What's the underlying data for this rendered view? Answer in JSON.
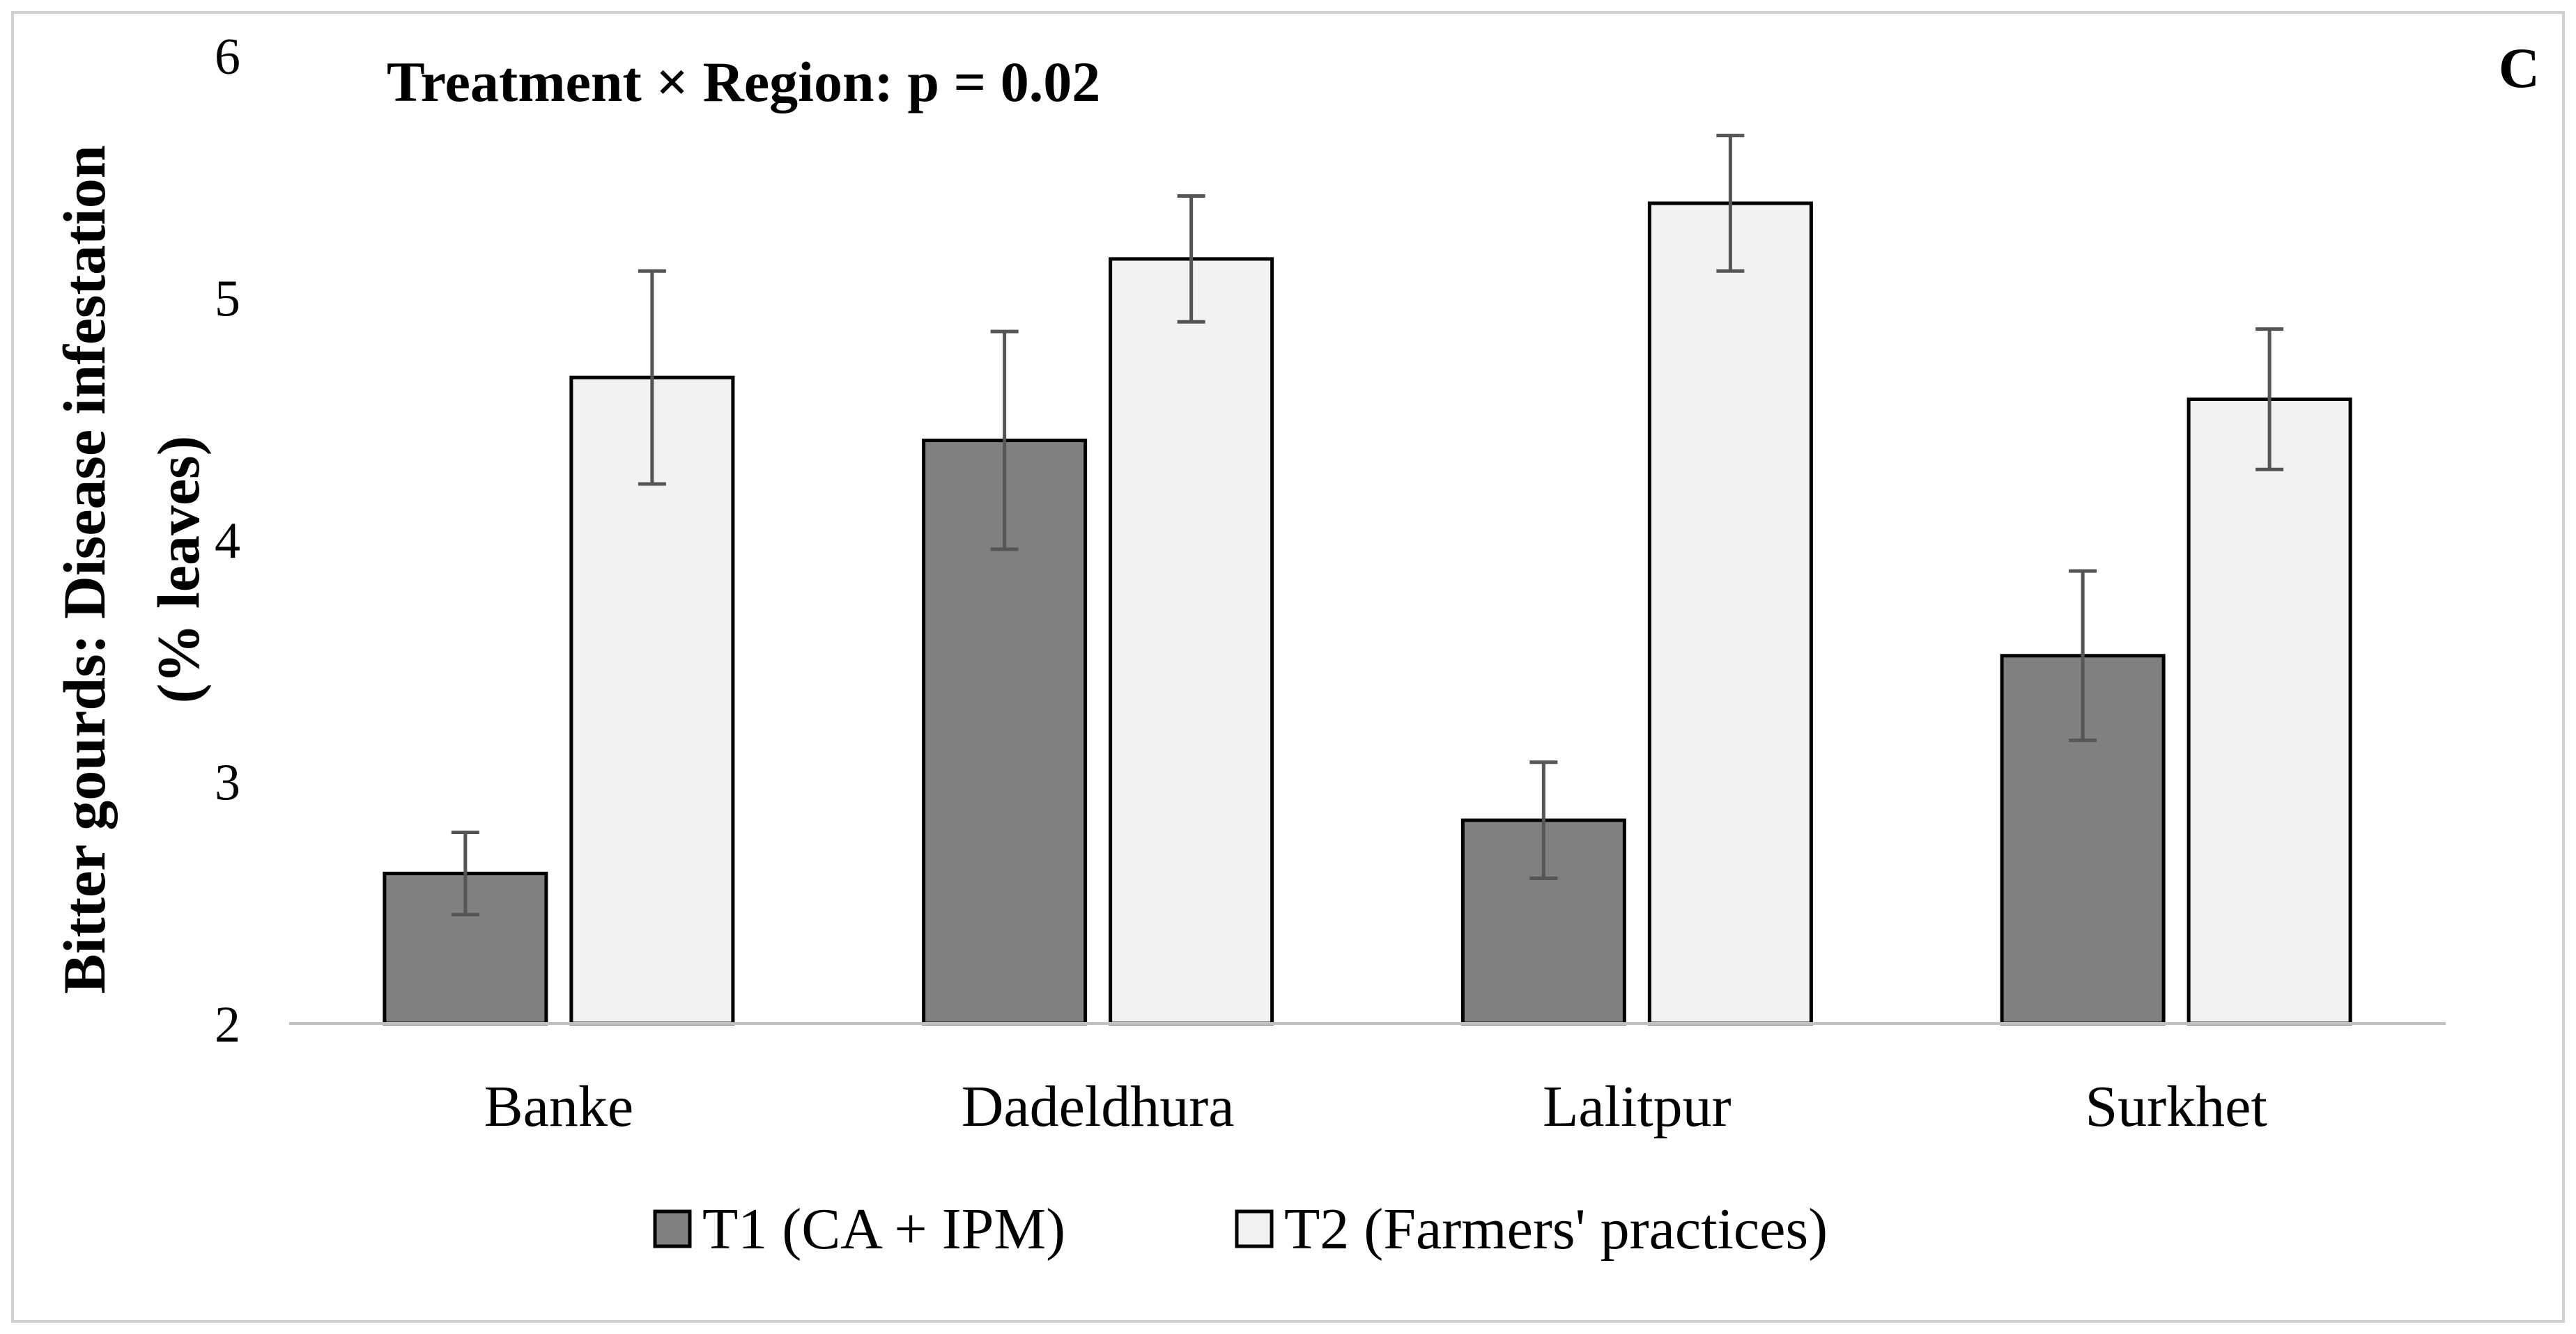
{
  "chart_data": {
    "type": "bar",
    "title": "Treatment × Region: p = 0.02",
    "panel_label": "C",
    "ylabel_line1": "Bitter gourds: Disease infestation",
    "ylabel_line2": "(% leaves)",
    "xlabel": "",
    "ylim": [
      2,
      6
    ],
    "yticks": [
      2,
      3,
      4,
      5,
      6
    ],
    "categories": [
      "Banke",
      "Dadeldhura",
      "Lalitpur",
      "Surkhet"
    ],
    "series": [
      {
        "name": "T1 (CA + IPM)",
        "color": "#808080",
        "values": [
          2.62,
          4.41,
          2.84,
          3.52
        ],
        "errors": [
          0.17,
          0.45,
          0.24,
          0.35
        ]
      },
      {
        "name": "T2 (Farmers' practices)",
        "color": "#f2f2f2",
        "values": [
          4.67,
          5.16,
          5.39,
          4.58
        ],
        "errors": [
          0.44,
          0.26,
          0.28,
          0.29
        ]
      }
    ],
    "legend_position": "bottom",
    "grid": false
  }
}
